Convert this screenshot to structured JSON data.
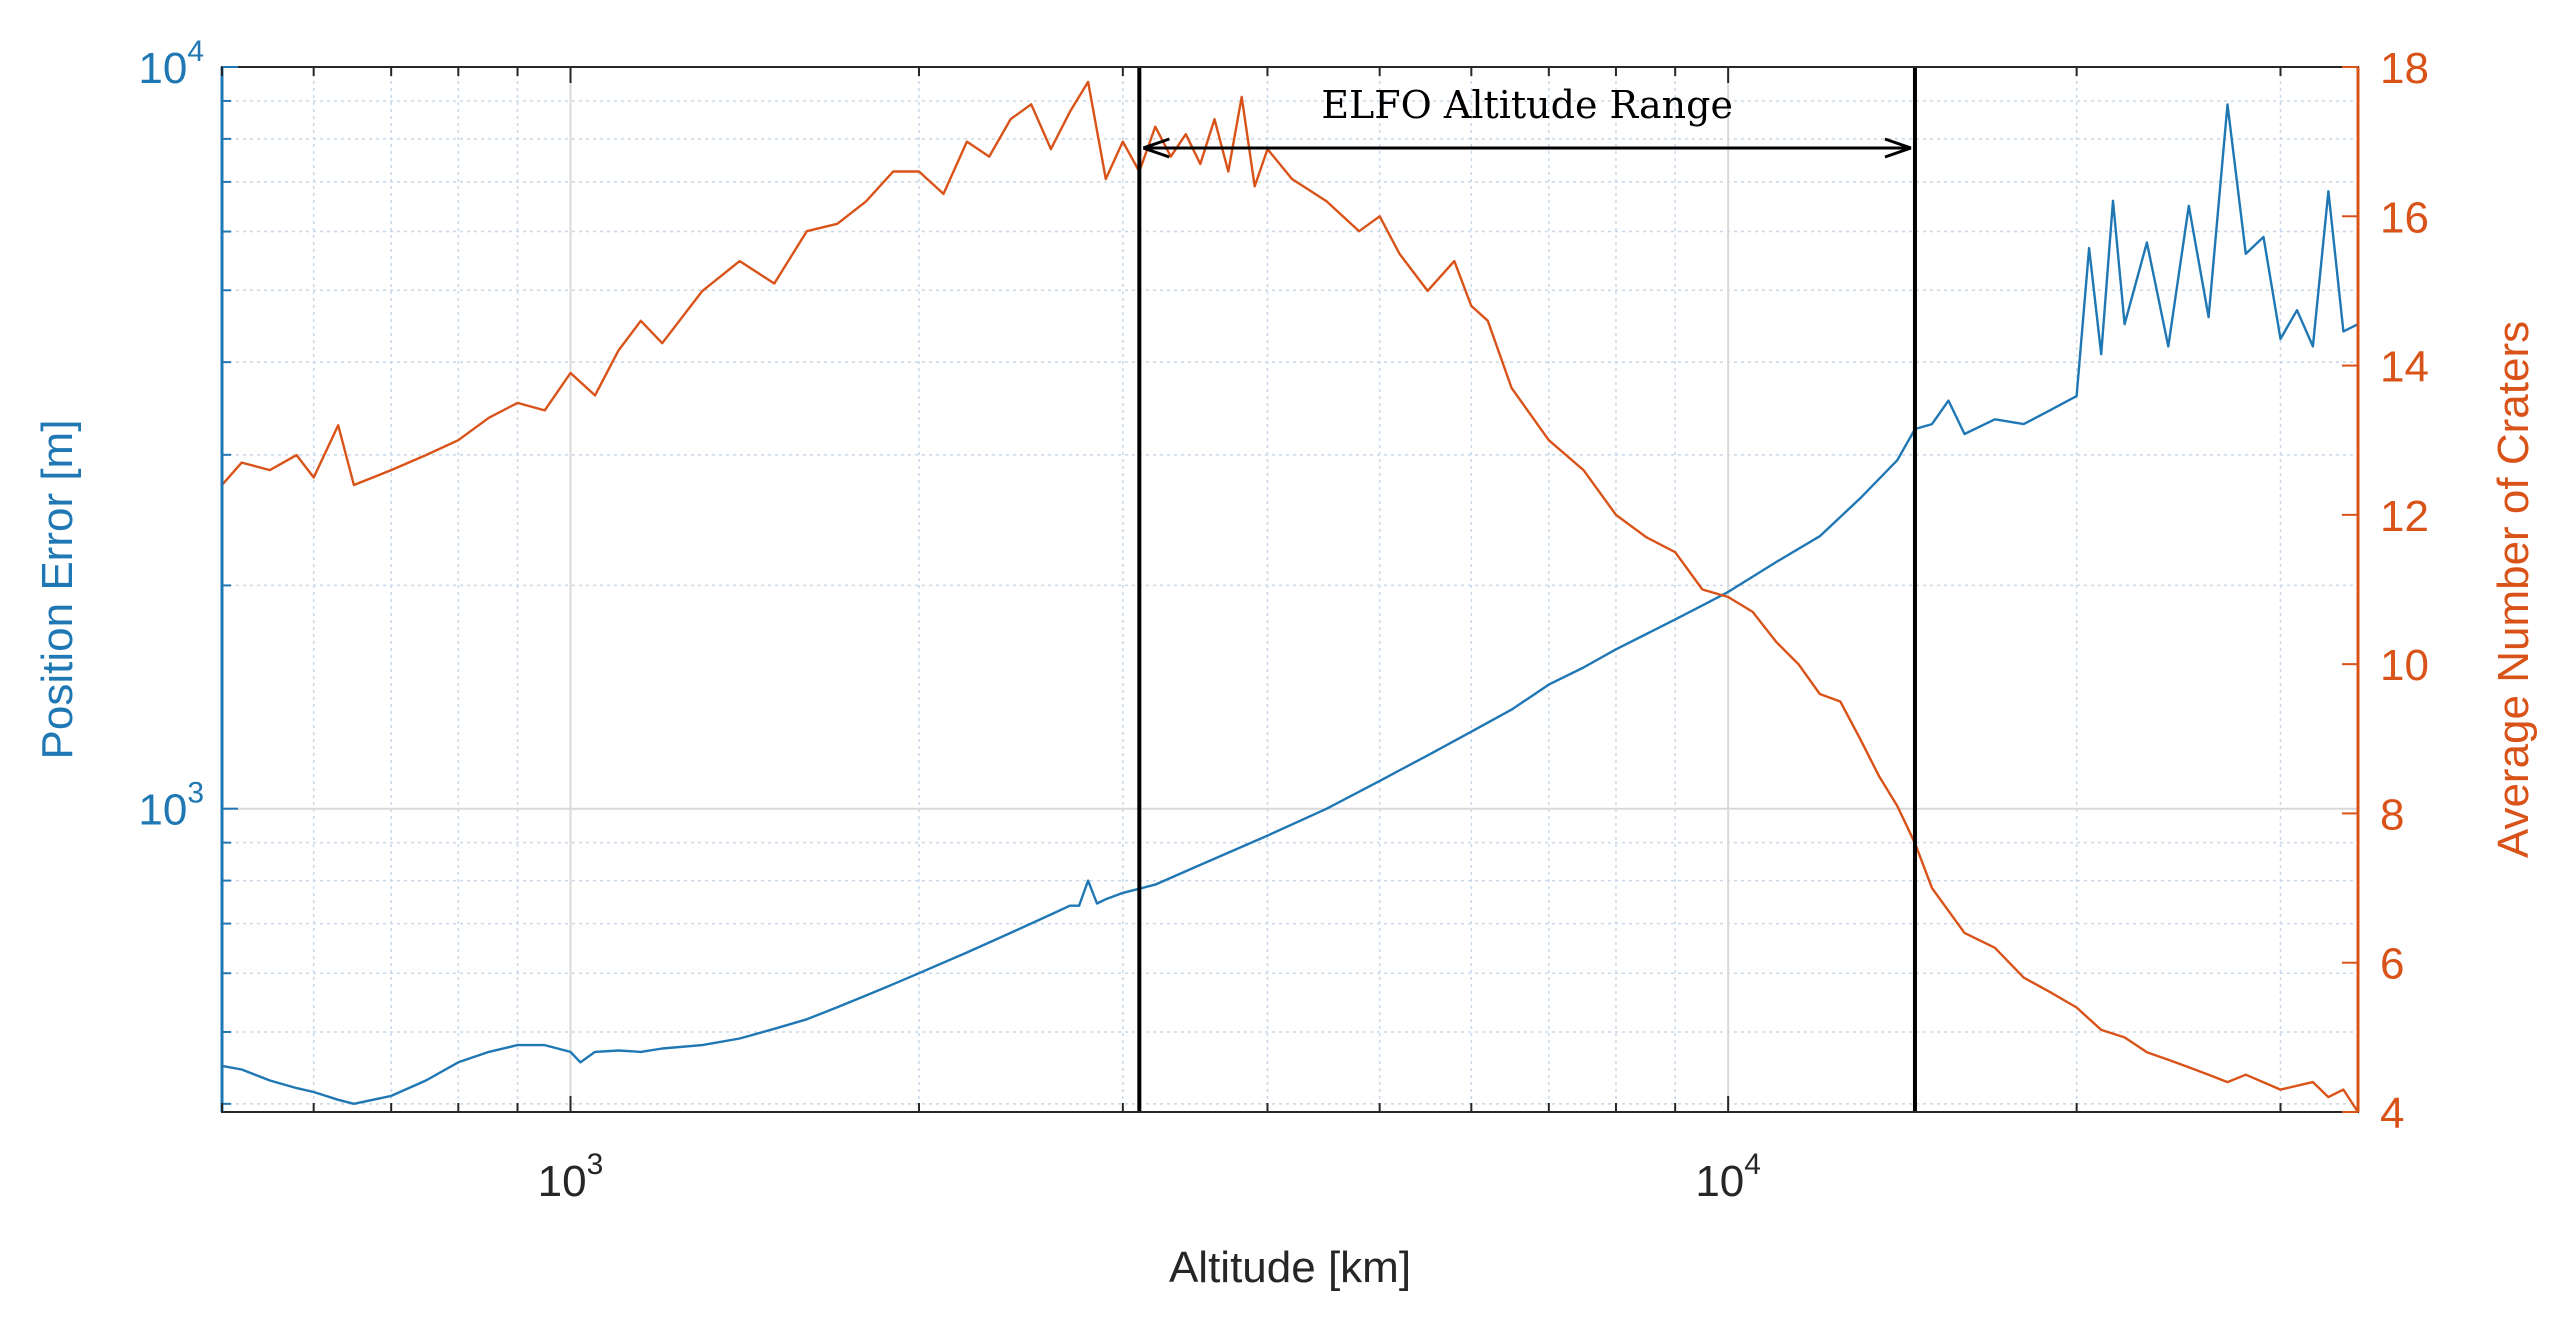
{
  "chart_data": {
    "type": "line",
    "xscale": "log",
    "xlabel": "Altitude [km]",
    "xlim": [
      500,
      35000
    ],
    "xticks": [
      {
        "value": 1000,
        "base": "10",
        "exp": "3"
      },
      {
        "value": 10000,
        "base": "10",
        "exp": "4"
      }
    ],
    "yleft": {
      "label": "Position Error [m]",
      "scale": "log",
      "lim": [
        390,
        10000
      ],
      "color": "#1f77b4",
      "ticks": [
        {
          "value": 1000,
          "base": "10",
          "exp": "3"
        },
        {
          "value": 10000,
          "base": "10",
          "exp": "4"
        }
      ]
    },
    "yright": {
      "label": "Average Number of Craters",
      "scale": "linear",
      "lim": [
        4,
        18
      ],
      "color": "#d95319",
      "ticks": [
        "4",
        "6",
        "8",
        "10",
        "12",
        "14",
        "16",
        "18"
      ]
    },
    "grid": true,
    "minor_grid": true,
    "series": [
      {
        "name": "Position Error",
        "axis": "left",
        "color": "#1f77b4",
        "points": [
          [
            500,
            450
          ],
          [
            520,
            445
          ],
          [
            550,
            430
          ],
          [
            580,
            420
          ],
          [
            600,
            415
          ],
          [
            630,
            405
          ],
          [
            650,
            400
          ],
          [
            700,
            410
          ],
          [
            750,
            430
          ],
          [
            800,
            455
          ],
          [
            850,
            470
          ],
          [
            900,
            480
          ],
          [
            950,
            480
          ],
          [
            1000,
            470
          ],
          [
            1020,
            455
          ],
          [
            1050,
            470
          ],
          [
            1100,
            472
          ],
          [
            1150,
            470
          ],
          [
            1200,
            475
          ],
          [
            1300,
            480
          ],
          [
            1400,
            490
          ],
          [
            1500,
            505
          ],
          [
            1600,
            520
          ],
          [
            1700,
            540
          ],
          [
            1800,
            560
          ],
          [
            1900,
            580
          ],
          [
            2000,
            600
          ],
          [
            2200,
            640
          ],
          [
            2400,
            680
          ],
          [
            2600,
            720
          ],
          [
            2700,
            740
          ],
          [
            2750,
            740
          ],
          [
            2800,
            800
          ],
          [
            2850,
            745
          ],
          [
            2900,
            755
          ],
          [
            3000,
            770
          ],
          [
            3200,
            790
          ],
          [
            3500,
            840
          ],
          [
            4000,
            920
          ],
          [
            4500,
            1000
          ],
          [
            5000,
            1090
          ],
          [
            5500,
            1180
          ],
          [
            6000,
            1270
          ],
          [
            6500,
            1360
          ],
          [
            7000,
            1470
          ],
          [
            7500,
            1550
          ],
          [
            8000,
            1640
          ],
          [
            8500,
            1720
          ],
          [
            9000,
            1800
          ],
          [
            9500,
            1880
          ],
          [
            10000,
            1960
          ],
          [
            11000,
            2150
          ],
          [
            12000,
            2330
          ],
          [
            13000,
            2620
          ],
          [
            14000,
            2950
          ],
          [
            14500,
            3250
          ],
          [
            15000,
            3300
          ],
          [
            15500,
            3550
          ],
          [
            16000,
            3200
          ],
          [
            17000,
            3350
          ],
          [
            18000,
            3300
          ],
          [
            19000,
            3450
          ],
          [
            20000,
            3600
          ],
          [
            20500,
            5700
          ],
          [
            21000,
            4100
          ],
          [
            21500,
            6600
          ],
          [
            22000,
            4500
          ],
          [
            23000,
            5800
          ],
          [
            24000,
            4200
          ],
          [
            25000,
            6500
          ],
          [
            26000,
            4600
          ],
          [
            27000,
            8900
          ],
          [
            28000,
            5600
          ],
          [
            29000,
            5900
          ],
          [
            30000,
            4300
          ],
          [
            31000,
            4700
          ],
          [
            32000,
            4200
          ],
          [
            33000,
            6800
          ],
          [
            34000,
            4400
          ],
          [
            35000,
            4500
          ]
        ]
      },
      {
        "name": "Average Number of Craters",
        "axis": "right",
        "color": "#d95319",
        "points": [
          [
            500,
            12.4
          ],
          [
            520,
            12.7
          ],
          [
            550,
            12.6
          ],
          [
            580,
            12.8
          ],
          [
            600,
            12.5
          ],
          [
            630,
            13.2
          ],
          [
            650,
            12.4
          ],
          [
            700,
            12.6
          ],
          [
            750,
            12.8
          ],
          [
            800,
            13.0
          ],
          [
            850,
            13.3
          ],
          [
            900,
            13.5
          ],
          [
            950,
            13.4
          ],
          [
            1000,
            13.9
          ],
          [
            1050,
            13.6
          ],
          [
            1100,
            14.2
          ],
          [
            1150,
            14.6
          ],
          [
            1200,
            14.3
          ],
          [
            1300,
            15.0
          ],
          [
            1400,
            15.4
          ],
          [
            1500,
            15.1
          ],
          [
            1600,
            15.8
          ],
          [
            1700,
            15.9
          ],
          [
            1800,
            16.2
          ],
          [
            1900,
            16.6
          ],
          [
            2000,
            16.6
          ],
          [
            2100,
            16.3
          ],
          [
            2200,
            17.0
          ],
          [
            2300,
            16.8
          ],
          [
            2400,
            17.3
          ],
          [
            2500,
            17.5
          ],
          [
            2600,
            16.9
          ],
          [
            2700,
            17.4
          ],
          [
            2800,
            17.8
          ],
          [
            2900,
            16.5
          ],
          [
            3000,
            17.0
          ],
          [
            3100,
            16.6
          ],
          [
            3200,
            17.2
          ],
          [
            3300,
            16.8
          ],
          [
            3400,
            17.1
          ],
          [
            3500,
            16.7
          ],
          [
            3600,
            17.3
          ],
          [
            3700,
            16.6
          ],
          [
            3800,
            17.6
          ],
          [
            3900,
            16.4
          ],
          [
            4000,
            16.9
          ],
          [
            4200,
            16.5
          ],
          [
            4500,
            16.2
          ],
          [
            4800,
            15.8
          ],
          [
            5000,
            16.0
          ],
          [
            5200,
            15.5
          ],
          [
            5500,
            15.0
          ],
          [
            5800,
            15.4
          ],
          [
            6000,
            14.8
          ],
          [
            6200,
            14.6
          ],
          [
            6500,
            13.7
          ],
          [
            7000,
            13.0
          ],
          [
            7500,
            12.6
          ],
          [
            8000,
            12.0
          ],
          [
            8500,
            11.7
          ],
          [
            9000,
            11.5
          ],
          [
            9500,
            11.0
          ],
          [
            10000,
            10.9
          ],
          [
            10500,
            10.7
          ],
          [
            11000,
            10.3
          ],
          [
            11500,
            10.0
          ],
          [
            12000,
            9.6
          ],
          [
            12500,
            9.5
          ],
          [
            13000,
            9.0
          ],
          [
            13500,
            8.5
          ],
          [
            14000,
            8.1
          ],
          [
            14500,
            7.6
          ],
          [
            15000,
            7.0
          ],
          [
            16000,
            6.4
          ],
          [
            17000,
            6.2
          ],
          [
            18000,
            5.8
          ],
          [
            19000,
            5.6
          ],
          [
            20000,
            5.4
          ],
          [
            21000,
            5.1
          ],
          [
            22000,
            5.0
          ],
          [
            23000,
            4.8
          ],
          [
            24000,
            4.7
          ],
          [
            25000,
            4.6
          ],
          [
            26000,
            4.5
          ],
          [
            27000,
            4.4
          ],
          [
            28000,
            4.5
          ],
          [
            30000,
            4.3
          ],
          [
            32000,
            4.4
          ],
          [
            33000,
            4.2
          ],
          [
            34000,
            4.3
          ],
          [
            35000,
            4.0
          ]
        ]
      }
    ],
    "annotation": {
      "text": "ELFO Altitude Range",
      "range": [
        3100,
        14500
      ]
    }
  }
}
